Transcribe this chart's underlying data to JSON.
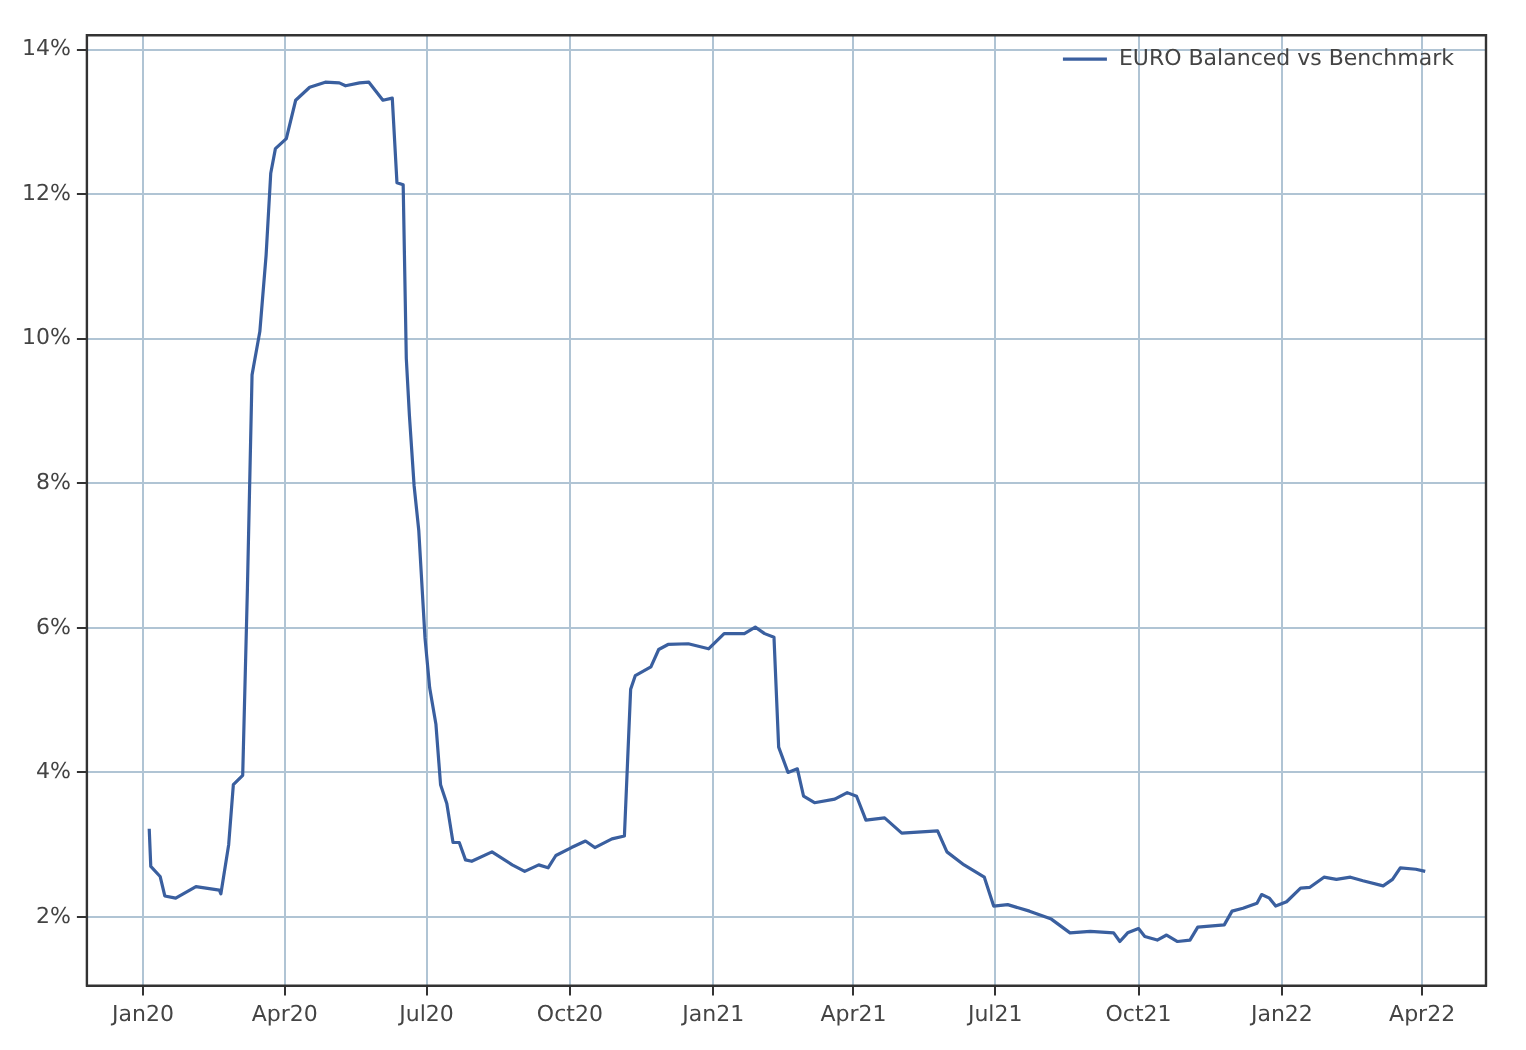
{
  "chart_data": {
    "type": "line",
    "x": [
      "2020-01-05",
      "2020-01-06",
      "2020-01-12",
      "2020-01-15",
      "2020-01-22",
      "2020-02-04",
      "2020-02-19",
      "2020-02-20",
      "2020-02-25",
      "2020-02-28",
      "2020-03-05",
      "2020-03-08",
      "2020-03-11",
      "2020-03-16",
      "2020-03-20",
      "2020-03-23",
      "2020-03-26",
      "2020-04-02",
      "2020-04-08",
      "2020-04-17",
      "2020-04-27",
      "2020-05-06",
      "2020-05-10",
      "2020-05-19",
      "2020-05-25",
      "2020-06-03",
      "2020-06-09",
      "2020-06-12",
      "2020-06-16",
      "2020-06-18",
      "2020-06-20",
      "2020-06-23",
      "2020-06-26",
      "2020-06-30",
      "2020-07-03",
      "2020-07-07",
      "2020-07-10",
      "2020-07-14",
      "2020-07-18",
      "2020-07-22",
      "2020-07-26",
      "2020-07-30",
      "2020-08-12",
      "2020-08-25",
      "2020-09-02",
      "2020-09-11",
      "2020-09-17",
      "2020-09-22",
      "2020-10-02",
      "2020-10-11",
      "2020-10-17",
      "2020-10-28",
      "2020-11-05",
      "2020-11-09",
      "2020-11-12",
      "2020-11-22",
      "2020-11-27",
      "2020-12-03",
      "2020-12-16",
      "2020-12-29",
      "2021-01-08",
      "2021-01-21",
      "2021-01-28",
      "2021-02-03",
      "2021-02-09",
      "2021-02-12",
      "2021-02-18",
      "2021-02-24",
      "2021-02-28",
      "2021-03-07",
      "2021-03-20",
      "2021-03-28",
      "2021-04-03",
      "2021-04-09",
      "2021-04-21",
      "2021-05-02",
      "2021-05-25",
      "2021-05-31",
      "2021-06-11",
      "2021-06-24",
      "2021-06-30",
      "2021-07-09",
      "2021-07-23",
      "2021-08-06",
      "2021-08-18",
      "2021-08-31",
      "2021-09-15",
      "2021-09-19",
      "2021-09-24",
      "2021-10-01",
      "2021-10-05",
      "2021-10-13",
      "2021-10-19",
      "2021-10-26",
      "2021-11-03",
      "2021-11-08",
      "2021-11-25",
      "2021-11-30",
      "2021-12-07",
      "2021-12-16",
      "2021-12-19",
      "2021-12-24",
      "2021-12-28",
      "2022-01-04",
      "2022-01-13",
      "2022-01-19",
      "2022-01-28",
      "2022-02-05",
      "2022-02-14",
      "2022-02-22",
      "2022-03-07",
      "2022-03-13",
      "2022-03-18",
      "2022-03-28",
      "2022-04-03"
    ],
    "series": [
      {
        "name": "EURO Balanced vs Benchmark",
        "color": "#3a5f9f",
        "values": [
          3.22,
          2.7,
          2.56,
          2.29,
          2.26,
          2.42,
          2.37,
          2.32,
          3.0,
          3.83,
          3.96,
          6.52,
          9.5,
          10.1,
          11.15,
          12.29,
          12.63,
          12.77,
          13.3,
          13.48,
          13.55,
          13.54,
          13.5,
          13.54,
          13.55,
          13.3,
          13.33,
          12.16,
          12.13,
          9.73,
          8.94,
          7.97,
          7.35,
          5.86,
          5.17,
          4.67,
          3.83,
          3.57,
          3.03,
          3.03,
          2.79,
          2.77,
          2.9,
          2.72,
          2.63,
          2.72,
          2.68,
          2.85,
          2.96,
          3.05,
          2.96,
          3.08,
          3.12,
          5.15,
          5.34,
          5.46,
          5.7,
          5.77,
          5.78,
          5.71,
          5.92,
          5.92,
          6.01,
          5.92,
          5.87,
          4.35,
          4.0,
          4.05,
          3.67,
          3.58,
          3.63,
          3.72,
          3.67,
          3.34,
          3.37,
          3.16,
          3.19,
          2.9,
          2.72,
          2.55,
          2.15,
          2.17,
          2.08,
          1.97,
          1.78,
          1.8,
          1.78,
          1.66,
          1.78,
          1.84,
          1.73,
          1.68,
          1.75,
          1.66,
          1.68,
          1.86,
          1.89,
          2.08,
          2.12,
          2.19,
          2.31,
          2.26,
          2.15,
          2.21,
          2.4,
          2.41,
          2.55,
          2.52,
          2.55,
          2.5,
          2.43,
          2.52,
          2.68,
          2.66,
          2.63
        ]
      }
    ],
    "xlim": [
      "2019-11-26",
      "2022-05-12"
    ],
    "xticks": [
      {
        "value": "2020-01-01",
        "label": "Jan20"
      },
      {
        "value": "2020-04-01",
        "label": "Apr20"
      },
      {
        "value": "2020-07-01",
        "label": "Jul20"
      },
      {
        "value": "2020-10-01",
        "label": "Oct20"
      },
      {
        "value": "2021-01-01",
        "label": "Jan21"
      },
      {
        "value": "2021-04-01",
        "label": "Apr21"
      },
      {
        "value": "2021-07-01",
        "label": "Jul21"
      },
      {
        "value": "2021-10-01",
        "label": "Oct21"
      },
      {
        "value": "2022-01-01",
        "label": "Jan22"
      },
      {
        "value": "2022-04-01",
        "label": "Apr22"
      }
    ],
    "ylim": [
      1.05,
      14.2
    ],
    "yticks": [
      {
        "value": 2,
        "label": "2%"
      },
      {
        "value": 4,
        "label": "4%"
      },
      {
        "value": 6,
        "label": "6%"
      },
      {
        "value": 8,
        "label": "8%"
      },
      {
        "value": 10,
        "label": "10%"
      },
      {
        "value": 12,
        "label": "12%"
      },
      {
        "value": 14,
        "label": "14%"
      }
    ],
    "grid": true,
    "legend": "top right",
    "marker": "none",
    "line_style": "solid"
  }
}
